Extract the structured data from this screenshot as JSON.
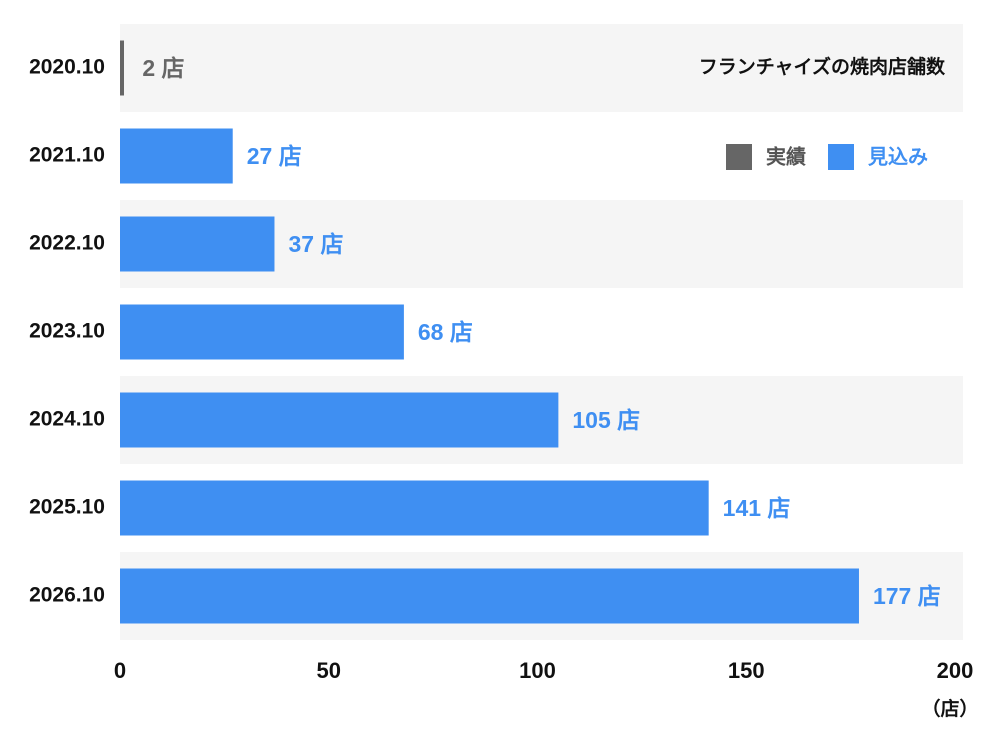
{
  "chart_data": {
    "type": "bar",
    "orientation": "horizontal",
    "title": "フランチャイズの焼肉店舗数",
    "x_label": "（店）",
    "categories": [
      "2020.10",
      "2021.10",
      "2022.10",
      "2023.10",
      "2024.10",
      "2025.10",
      "2026.10"
    ],
    "series": [
      {
        "name": "実績",
        "color": "#666666",
        "values": [
          2,
          null,
          null,
          null,
          null,
          null,
          null
        ],
        "value_labels": [
          "2 店",
          null,
          null,
          null,
          null,
          null,
          null
        ]
      },
      {
        "name": "見込み",
        "color": "#3f8ff2",
        "values": [
          null,
          27,
          37,
          68,
          105,
          141,
          177
        ],
        "value_labels": [
          null,
          "27 店",
          "37 店",
          "68 店",
          "105 店",
          "141 店",
          "177 店"
        ]
      }
    ],
    "xlim": [
      0,
      200
    ],
    "xticks": [
      0,
      50,
      100,
      150,
      200
    ],
    "legend": "upper right"
  }
}
